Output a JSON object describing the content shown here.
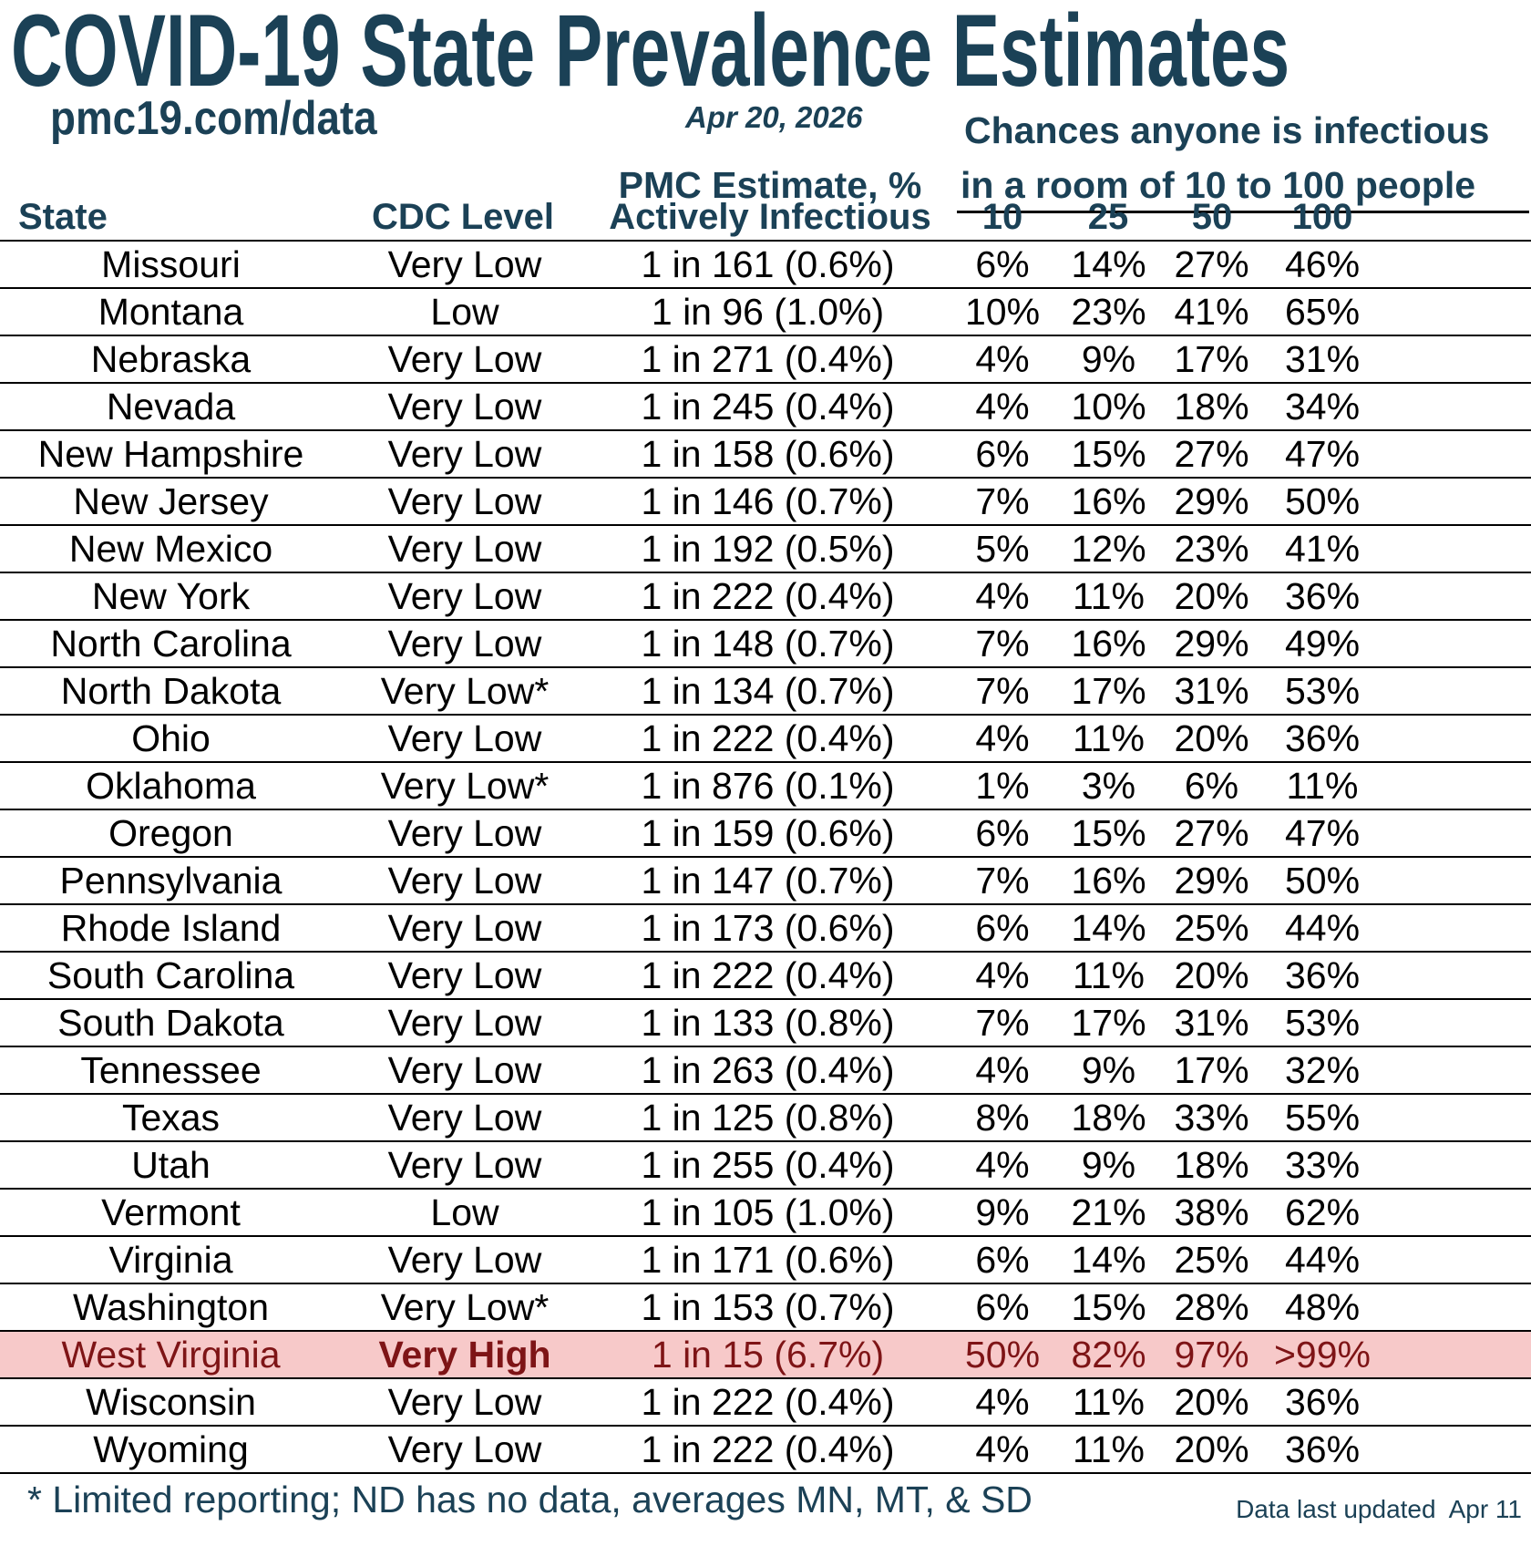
{
  "header": {
    "title": "COVID-19 State Prevalence Estimates",
    "site_url": "pmc19.com/data",
    "report_date": "Apr 20, 2026",
    "chances_line1": "Chances anyone is infectious",
    "chances_line2": "in a room of 10 to 100 people",
    "pmc_estimate_heading": "PMC Estimate, %"
  },
  "columns": {
    "state": "State",
    "cdc_level": "CDC Level",
    "actively_infectious": "Actively Infectious",
    "room_sizes": [
      "10",
      "25",
      "50",
      "100"
    ]
  },
  "footer": {
    "footnote": "* Limited reporting; ND has no data, averages MN, MT, & SD",
    "last_updated_label": "Data last updated",
    "last_updated_date": "Apr 11"
  },
  "colors": {
    "heading_navy": "#1B4156",
    "highlight_background": "#F7C9C9",
    "highlight_text": "#7E1416",
    "body_text": "#000000"
  },
  "chart_data": {
    "type": "table",
    "title": "COVID-19 State Prevalence Estimates",
    "columns": [
      "State",
      "CDC Level",
      "PMC Estimate, % Actively Infectious",
      "10",
      "25",
      "50",
      "100"
    ],
    "rows": [
      {
        "state": "Missouri",
        "cdc_level": "Very Low",
        "estimate": "1 in 161 (0.6%)",
        "chances": [
          "6%",
          "14%",
          "27%",
          "46%"
        ],
        "highlight": false
      },
      {
        "state": "Montana",
        "cdc_level": "Low",
        "estimate": "1 in 96 (1.0%)",
        "chances": [
          "10%",
          "23%",
          "41%",
          "65%"
        ],
        "highlight": false
      },
      {
        "state": "Nebraska",
        "cdc_level": "Very Low",
        "estimate": "1 in 271 (0.4%)",
        "chances": [
          "4%",
          "9%",
          "17%",
          "31%"
        ],
        "highlight": false
      },
      {
        "state": "Nevada",
        "cdc_level": "Very Low",
        "estimate": "1 in 245 (0.4%)",
        "chances": [
          "4%",
          "10%",
          "18%",
          "34%"
        ],
        "highlight": false
      },
      {
        "state": "New Hampshire",
        "cdc_level": "Very Low",
        "estimate": "1 in 158 (0.6%)",
        "chances": [
          "6%",
          "15%",
          "27%",
          "47%"
        ],
        "highlight": false
      },
      {
        "state": "New Jersey",
        "cdc_level": "Very Low",
        "estimate": "1 in 146 (0.7%)",
        "chances": [
          "7%",
          "16%",
          "29%",
          "50%"
        ],
        "highlight": false
      },
      {
        "state": "New Mexico",
        "cdc_level": "Very Low",
        "estimate": "1 in 192 (0.5%)",
        "chances": [
          "5%",
          "12%",
          "23%",
          "41%"
        ],
        "highlight": false
      },
      {
        "state": "New York",
        "cdc_level": "Very Low",
        "estimate": "1 in 222 (0.4%)",
        "chances": [
          "4%",
          "11%",
          "20%",
          "36%"
        ],
        "highlight": false
      },
      {
        "state": "North Carolina",
        "cdc_level": "Very Low",
        "estimate": "1 in 148 (0.7%)",
        "chances": [
          "7%",
          "16%",
          "29%",
          "49%"
        ],
        "highlight": false
      },
      {
        "state": "North Dakota",
        "cdc_level": "Very Low*",
        "estimate": "1 in 134 (0.7%)",
        "chances": [
          "7%",
          "17%",
          "31%",
          "53%"
        ],
        "highlight": false
      },
      {
        "state": "Ohio",
        "cdc_level": "Very Low",
        "estimate": "1 in 222 (0.4%)",
        "chances": [
          "4%",
          "11%",
          "20%",
          "36%"
        ],
        "highlight": false
      },
      {
        "state": "Oklahoma",
        "cdc_level": "Very Low*",
        "estimate": "1 in 876 (0.1%)",
        "chances": [
          "1%",
          "3%",
          "6%",
          "11%"
        ],
        "highlight": false
      },
      {
        "state": "Oregon",
        "cdc_level": "Very Low",
        "estimate": "1 in 159 (0.6%)",
        "chances": [
          "6%",
          "15%",
          "27%",
          "47%"
        ],
        "highlight": false
      },
      {
        "state": "Pennsylvania",
        "cdc_level": "Very Low",
        "estimate": "1 in 147 (0.7%)",
        "chances": [
          "7%",
          "16%",
          "29%",
          "50%"
        ],
        "highlight": false
      },
      {
        "state": "Rhode Island",
        "cdc_level": "Very Low",
        "estimate": "1 in 173 (0.6%)",
        "chances": [
          "6%",
          "14%",
          "25%",
          "44%"
        ],
        "highlight": false
      },
      {
        "state": "South Carolina",
        "cdc_level": "Very Low",
        "estimate": "1 in 222 (0.4%)",
        "chances": [
          "4%",
          "11%",
          "20%",
          "36%"
        ],
        "highlight": false
      },
      {
        "state": "South Dakota",
        "cdc_level": "Very Low",
        "estimate": "1 in 133 (0.8%)",
        "chances": [
          "7%",
          "17%",
          "31%",
          "53%"
        ],
        "highlight": false
      },
      {
        "state": "Tennessee",
        "cdc_level": "Very Low",
        "estimate": "1 in 263 (0.4%)",
        "chances": [
          "4%",
          "9%",
          "17%",
          "32%"
        ],
        "highlight": false
      },
      {
        "state": "Texas",
        "cdc_level": "Very Low",
        "estimate": "1 in 125 (0.8%)",
        "chances": [
          "8%",
          "18%",
          "33%",
          "55%"
        ],
        "highlight": false
      },
      {
        "state": "Utah",
        "cdc_level": "Very Low",
        "estimate": "1 in 255 (0.4%)",
        "chances": [
          "4%",
          "9%",
          "18%",
          "33%"
        ],
        "highlight": false
      },
      {
        "state": "Vermont",
        "cdc_level": "Low",
        "estimate": "1 in 105 (1.0%)",
        "chances": [
          "9%",
          "21%",
          "38%",
          "62%"
        ],
        "highlight": false
      },
      {
        "state": "Virginia",
        "cdc_level": "Very Low",
        "estimate": "1 in 171 (0.6%)",
        "chances": [
          "6%",
          "14%",
          "25%",
          "44%"
        ],
        "highlight": false
      },
      {
        "state": "Washington",
        "cdc_level": "Very Low*",
        "estimate": "1 in 153 (0.7%)",
        "chances": [
          "6%",
          "15%",
          "28%",
          "48%"
        ],
        "highlight": false
      },
      {
        "state": "West Virginia",
        "cdc_level": "Very High",
        "estimate": "1 in 15 (6.7%)",
        "chances": [
          "50%",
          "82%",
          "97%",
          ">99%"
        ],
        "highlight": true
      },
      {
        "state": "Wisconsin",
        "cdc_level": "Very Low",
        "estimate": "1 in 222 (0.4%)",
        "chances": [
          "4%",
          "11%",
          "20%",
          "36%"
        ],
        "highlight": false
      },
      {
        "state": "Wyoming",
        "cdc_level": "Very Low",
        "estimate": "1 in 222 (0.4%)",
        "chances": [
          "4%",
          "11%",
          "20%",
          "36%"
        ],
        "highlight": false
      }
    ]
  }
}
